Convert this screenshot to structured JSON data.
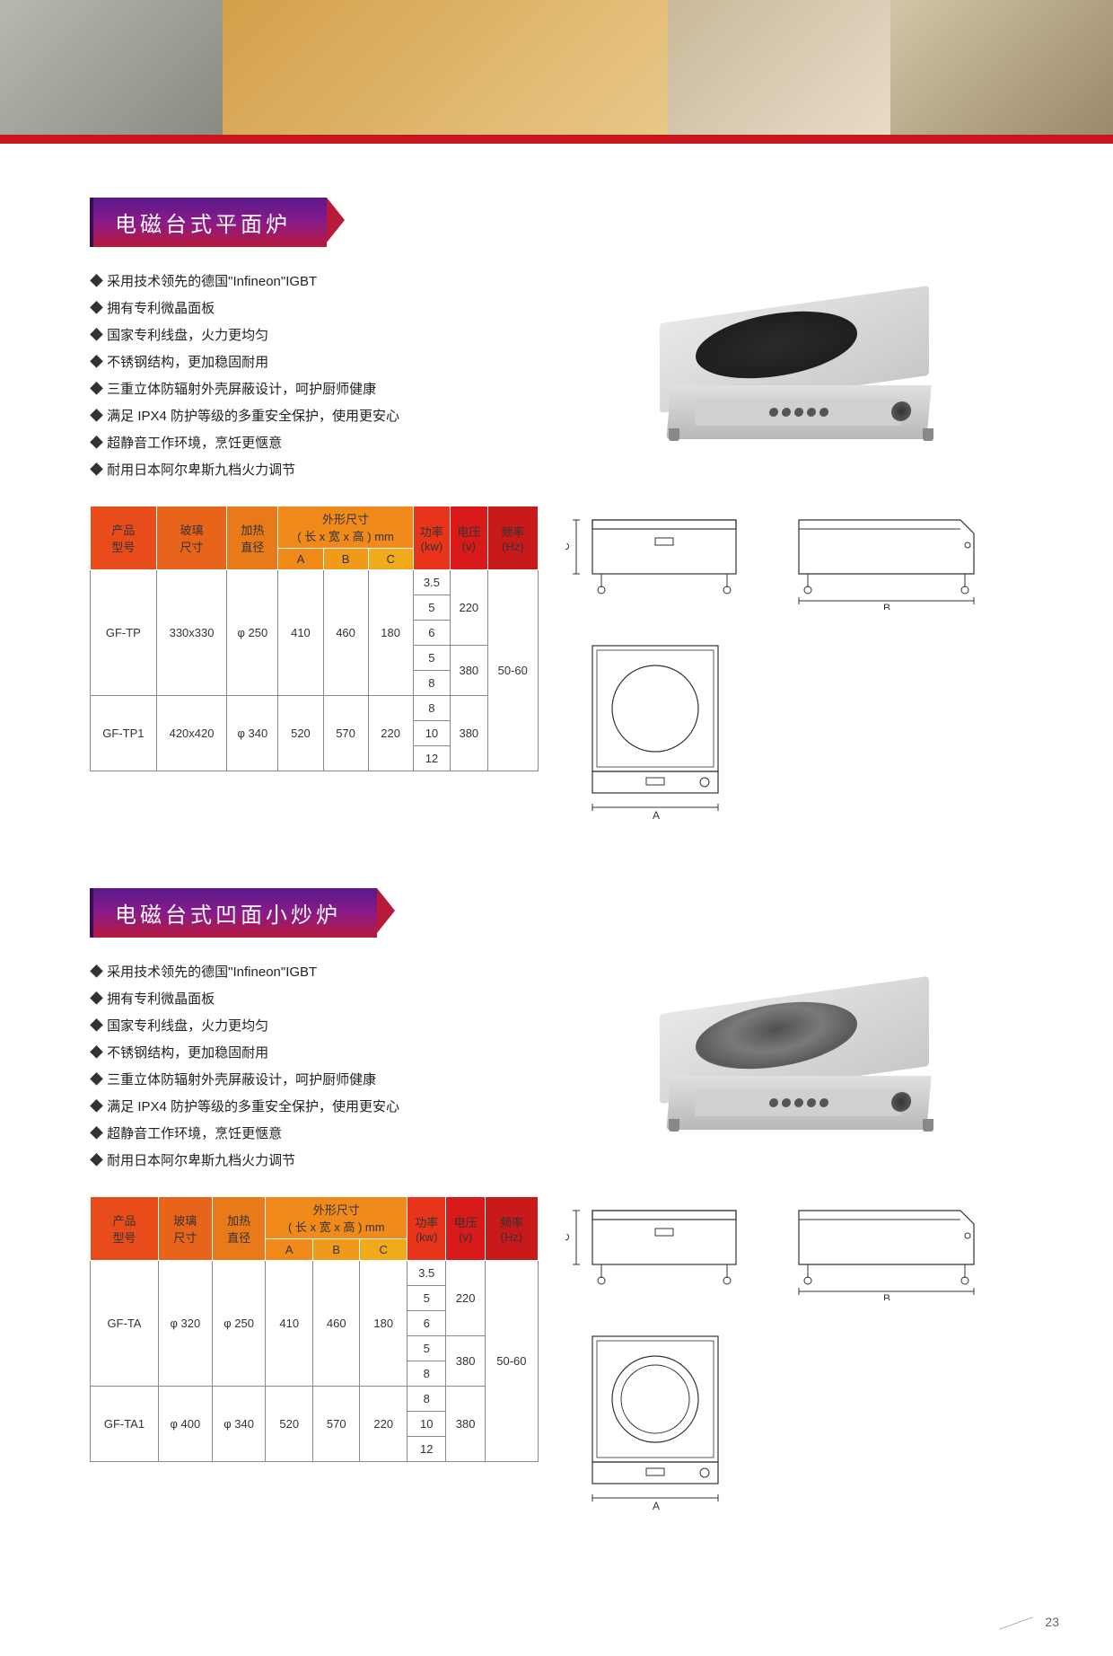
{
  "page_number": "23",
  "banner": {
    "images": 4
  },
  "sections": [
    {
      "id": "flat",
      "title": "电磁台式平面炉",
      "product_style": "flat",
      "features": [
        "采用技术领先的德国\"Infineon\"IGBT",
        "拥有专利微晶面板",
        "国家专利线盘，火力更均匀",
        "不锈钢结构，更加稳固耐用",
        "三重立体防辐射外壳屏蔽设计，呵护厨师健康",
        "满足 IPX4 防护等级的多重安全保护，使用更安心",
        "超静音工作环境，烹饪更惬意",
        "耐用日本阿尔卑斯九档火力调节"
      ],
      "table": {
        "header_colors": [
          "#e84c1a",
          "#e8641a",
          "#e87a1a",
          "#f08a1a",
          "#f09a1a",
          "#f0aa1a",
          "#e8341a",
          "#d81a1a",
          "#c81a1a"
        ],
        "header_row1": [
          "产品型号",
          "玻璃尺寸",
          "加热直径",
          "外形尺寸 ( 长 x 宽 x 高 ) mm",
          "功率 (kw)",
          "电压 (v)",
          "频率 (Hz)"
        ],
        "header_row2_abc": [
          "A",
          "B",
          "C"
        ],
        "models": [
          {
            "model": "GF-TP",
            "glass": "330x330",
            "heat": "φ 250",
            "A": "410",
            "B": "460",
            "C": "180",
            "power_voltage": [
              {
                "kw": "3.5",
                "v": "220"
              },
              {
                "kw": "5",
                "v": ""
              },
              {
                "kw": "6",
                "v": ""
              },
              {
                "kw": "5",
                "v": "380"
              },
              {
                "kw": "8",
                "v": ""
              }
            ],
            "hz": "50-60",
            "hz_span": 8
          },
          {
            "model": "GF-TP1",
            "glass": "420x420",
            "heat": "φ 340",
            "A": "520",
            "B": "570",
            "C": "220",
            "power_voltage": [
              {
                "kw": "8",
                "v": "380"
              },
              {
                "kw": "10",
                "v": ""
              },
              {
                "kw": "12",
                "v": ""
              }
            ]
          }
        ]
      },
      "diagram_labels": {
        "A": "A",
        "B": "B",
        "C": "C"
      }
    },
    {
      "id": "concave",
      "title": "电磁台式凹面小炒炉",
      "product_style": "concave",
      "features": [
        "采用技术领先的德国\"Infineon\"IGBT",
        "拥有专利微晶面板",
        "国家专利线盘，火力更均匀",
        "不锈钢结构，更加稳固耐用",
        "三重立体防辐射外壳屏蔽设计，呵护厨师健康",
        "满足 IPX4 防护等级的多重安全保护，使用更安心",
        "超静音工作环境，烹饪更惬意",
        "耐用日本阿尔卑斯九档火力调节"
      ],
      "table": {
        "header_colors": [
          "#e84c1a",
          "#e8641a",
          "#e87a1a",
          "#f08a1a",
          "#f09a1a",
          "#f0aa1a",
          "#e8341a",
          "#d81a1a",
          "#c81a1a"
        ],
        "header_row1": [
          "产品型号",
          "玻璃尺寸",
          "加热直径",
          "外形尺寸 ( 长 x 宽 x 高 ) mm",
          "功率 (kw)",
          "电压 (v)",
          "频率 (Hz)"
        ],
        "header_row2_abc": [
          "A",
          "B",
          "C"
        ],
        "models": [
          {
            "model": "GF-TA",
            "glass": "φ 320",
            "heat": "φ 250",
            "A": "410",
            "B": "460",
            "C": "180",
            "power_voltage": [
              {
                "kw": "3.5",
                "v": "220"
              },
              {
                "kw": "5",
                "v": ""
              },
              {
                "kw": "6",
                "v": ""
              },
              {
                "kw": "5",
                "v": "380"
              },
              {
                "kw": "8",
                "v": ""
              }
            ],
            "hz": "50-60",
            "hz_span": 8
          },
          {
            "model": "GF-TA1",
            "glass": "φ 400",
            "heat": "φ 340",
            "A": "520",
            "B": "570",
            "C": "220",
            "power_voltage": [
              {
                "kw": "8",
                "v": "380"
              },
              {
                "kw": "10",
                "v": ""
              },
              {
                "kw": "12",
                "v": ""
              }
            ]
          }
        ]
      },
      "diagram_labels": {
        "A": "A",
        "B": "B",
        "C": "C"
      }
    }
  ]
}
